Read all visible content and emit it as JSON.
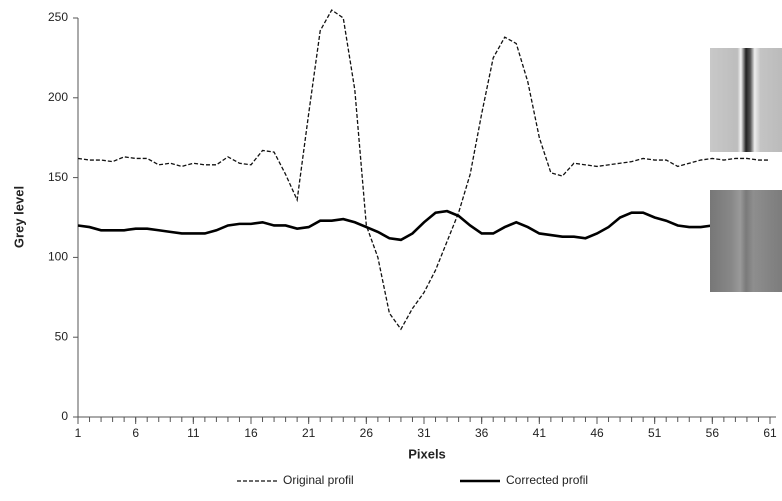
{
  "chart_data": {
    "type": "line",
    "x_label": "Pixels",
    "y_label": "Grey level",
    "x": [
      1,
      2,
      3,
      4,
      5,
      6,
      7,
      8,
      9,
      10,
      11,
      12,
      13,
      14,
      15,
      16,
      17,
      18,
      19,
      20,
      21,
      22,
      23,
      24,
      25,
      26,
      27,
      28,
      29,
      30,
      31,
      32,
      33,
      34,
      35,
      36,
      37,
      38,
      39,
      40,
      41,
      42,
      43,
      44,
      45,
      46,
      47,
      48,
      49,
      50,
      51,
      52,
      53,
      54,
      55,
      56,
      57,
      58,
      59,
      60,
      61
    ],
    "series": [
      {
        "name": "Original profil",
        "color": "#111111",
        "style": "dashed",
        "values": [
          162,
          161,
          161,
          160,
          163,
          162,
          162,
          158,
          159,
          157,
          159,
          158,
          158,
          163,
          159,
          158,
          167,
          166,
          152,
          136,
          190,
          242,
          255,
          250,
          205,
          120,
          100,
          65,
          55,
          68,
          78,
          92,
          110,
          128,
          152,
          190,
          225,
          238,
          234,
          210,
          175,
          153,
          151,
          159,
          158,
          157,
          158,
          159,
          160,
          162,
          161,
          161,
          157,
          159,
          161,
          162,
          161,
          162,
          162,
          161,
          161
        ]
      },
      {
        "name": "Corrected profil",
        "color": "#000000",
        "style": "solid",
        "values": [
          120,
          119,
          117,
          117,
          117,
          118,
          118,
          117,
          116,
          115,
          115,
          115,
          117,
          120,
          121,
          121,
          122,
          120,
          120,
          118,
          119,
          123,
          123,
          124,
          122,
          119,
          116,
          112,
          111,
          115,
          122,
          128,
          129,
          126,
          120,
          115,
          115,
          119,
          122,
          119,
          115,
          114,
          113,
          113,
          112,
          115,
          119,
          125,
          128,
          128,
          125,
          123,
          120,
          119,
          119,
          120,
          121,
          121,
          121,
          121,
          121
        ]
      }
    ],
    "xlim": [
      1,
      61
    ],
    "xticks": [
      1,
      6,
      11,
      16,
      21,
      26,
      31,
      36,
      41,
      46,
      51,
      56,
      61
    ],
    "ylim": [
      0,
      250
    ],
    "yticks": [
      0,
      50,
      100,
      150,
      200,
      250
    ],
    "legend": "bottom"
  }
}
